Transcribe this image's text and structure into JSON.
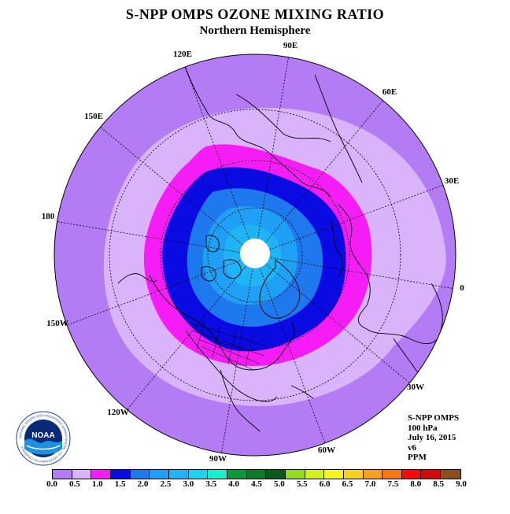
{
  "header": {
    "title": "S-NPP OMPS OZONE MIXING RATIO",
    "subtitle": "Northern Hemisphere"
  },
  "map": {
    "projection": "north polar stereographic",
    "longitude_labels": [
      "90E",
      "60E",
      "30E",
      "0",
      "30W",
      "60W",
      "90W",
      "120W",
      "150W",
      "180",
      "150E",
      "120E"
    ],
    "fill_colors": {
      "outer": "#b47cf4",
      "band_0_5": "#dab4fa",
      "band_1_0": "#f61cf6",
      "band_1_5": "#0a0ae2",
      "band_2_0": "#1e78ee",
      "band_2_5": "#1ea0f6",
      "pole": "#ffffff"
    }
  },
  "info": {
    "instrument": "S-NPP OMPS",
    "level": "100 hPa",
    "date": "July 16, 2015",
    "version": "v6",
    "units": "PPM"
  },
  "colorbar": {
    "colors": [
      "#b47cf4",
      "#dab4fa",
      "#f61cf6",
      "#0a0ae2",
      "#1e78ee",
      "#1ea0f6",
      "#1eb4f6",
      "#1ed2f0",
      "#18f0d2",
      "#0a9a3c",
      "#0a7a2c",
      "#0a5a1c",
      "#96dc1e",
      "#d2f01e",
      "#f6f61e",
      "#f6d21e",
      "#f6a01e",
      "#f67814",
      "#f60a0a",
      "#d20a0a",
      "#8c501e"
    ],
    "tick_labels": [
      "0.0",
      "0.5",
      "1.0",
      "1.5",
      "2.0",
      "2.5",
      "3.0",
      "3.5",
      "4.0",
      "4.5",
      "5.0",
      "5.5",
      "6.0",
      "6.5",
      "7.0",
      "7.5",
      "8.0",
      "8.5",
      "9.0"
    ]
  },
  "logo": {
    "text": "NOAA",
    "ring_text": "NATIONAL OCEANIC AND ATMOSPHERIC ADMINISTRATION · U.S. DEPARTMENT OF COMMERCE"
  }
}
